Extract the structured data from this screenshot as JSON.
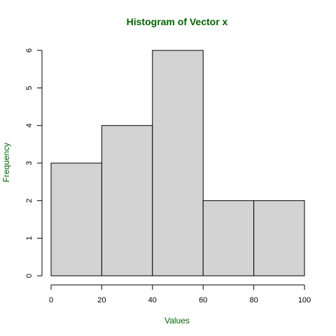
{
  "chart_data": {
    "type": "bar",
    "subtype": "histogram",
    "title": "Histogram of Vector x",
    "xlabel": "Values",
    "ylabel": "Frequency",
    "bins": [
      {
        "from": 0,
        "to": 20,
        "count": 3
      },
      {
        "from": 20,
        "to": 40,
        "count": 4
      },
      {
        "from": 40,
        "to": 60,
        "count": 6
      },
      {
        "from": 60,
        "to": 80,
        "count": 2
      },
      {
        "from": 80,
        "to": 100,
        "count": 2
      }
    ],
    "xlim": [
      0,
      100
    ],
    "ylim": [
      0,
      6
    ],
    "x_ticks": [
      "0",
      "20",
      "40",
      "60",
      "80",
      "100"
    ],
    "y_ticks": [
      "0",
      "1",
      "2",
      "3",
      "4",
      "5",
      "6"
    ],
    "grid": false,
    "colors": {
      "bar_fill": "#d3d3d3",
      "bar_stroke": "#000000",
      "title": "#006400",
      "labels": "#006400"
    }
  }
}
